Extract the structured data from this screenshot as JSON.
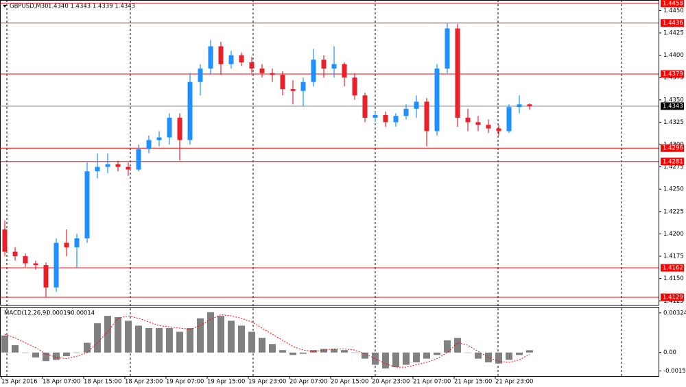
{
  "chart_data": [
    {
      "type": "candlestick",
      "title": "GBPUSD,M30",
      "subtitle": "1.4340 1.4343 1.4339 1.4343",
      "ylim": [
        1.41206,
        1.44618
      ],
      "yticks": [
        1.4125,
        {
          "value": 1.415,
          "label": "1.4150"
        },
        1.4175,
        {
          "value": 1.42,
          "label": "1.4200"
        },
        1.4225,
        {
          "value": 1.425,
          "label": "1.4250"
        },
        1.4275,
        {
          "value": 1.43,
          "label": "1.4300"
        },
        1.4325,
        {
          "value": 1.435,
          "label": "1.4350"
        },
        1.4375,
        {
          "value": 1.44,
          "label": "1.4400"
        },
        1.4425,
        {
          "value": 1.445,
          "label": "1.4450"
        }
      ],
      "up_color": "#1e90ff",
      "down_color": "#e8202a",
      "levels": [
        1.4458,
        1.4436,
        1.4379,
        1.4296,
        1.4281,
        1.4162,
        1.4129
      ],
      "level_color": "#ff0000",
      "current_price": 1.4343,
      "current_color": "#778899",
      "open": [
        1.4205,
        1.418,
        1.4175,
        1.4167,
        1.4165,
        1.414,
        1.419,
        1.4185,
        1.4195,
        1.427,
        1.4275,
        1.4278,
        1.4275,
        1.4272,
        1.4295,
        1.4305,
        1.4308,
        1.433,
        1.4305,
        1.437,
        1.4385,
        1.441,
        1.439,
        1.44,
        1.4392,
        1.4385,
        1.438,
        1.4378,
        1.4362,
        1.436,
        1.437,
        1.4395,
        1.4385,
        1.439,
        1.4375,
        1.4355,
        1.433,
        1.4333,
        1.4325,
        1.4332,
        1.434,
        1.4348,
        1.4315,
        1.4385,
        1.443,
        1.433,
        1.4325,
        1.4322,
        1.4318,
        1.4315,
        1.4342,
        1.4345
      ],
      "high": [
        1.4215,
        1.4185,
        1.4178,
        1.417,
        1.4168,
        1.4195,
        1.4205,
        1.42,
        1.428,
        1.429,
        1.429,
        1.4282,
        1.428,
        1.43,
        1.431,
        1.4315,
        1.4335,
        1.4335,
        1.438,
        1.439,
        1.4417,
        1.4415,
        1.4405,
        1.4403,
        1.4398,
        1.439,
        1.4385,
        1.4382,
        1.4372,
        1.4375,
        1.4407,
        1.44,
        1.441,
        1.4392,
        1.438,
        1.4358,
        1.4337,
        1.4337,
        1.4335,
        1.4345,
        1.4355,
        1.4352,
        1.439,
        1.4436,
        1.4435,
        1.434,
        1.4332,
        1.4328,
        1.4322,
        1.4345,
        1.4355,
        1.4346
      ],
      "low": [
        1.4175,
        1.417,
        1.4163,
        1.416,
        1.4129,
        1.4135,
        1.4175,
        1.4162,
        1.419,
        1.4262,
        1.4268,
        1.427,
        1.4265,
        1.427,
        1.429,
        1.4298,
        1.43,
        1.4282,
        1.43,
        1.4355,
        1.4378,
        1.4378,
        1.4385,
        1.4388,
        1.438,
        1.4375,
        1.437,
        1.4355,
        1.4345,
        1.4343,
        1.4365,
        1.4375,
        1.4375,
        1.4365,
        1.435,
        1.4325,
        1.4325,
        1.432,
        1.432,
        1.4328,
        1.433,
        1.4298,
        1.431,
        1.438,
        1.432,
        1.4315,
        1.4315,
        1.4313,
        1.431,
        1.4313,
        1.4335,
        1.4339
      ],
      "close": [
        1.418,
        1.4175,
        1.4167,
        1.4165,
        1.414,
        1.419,
        1.4185,
        1.4195,
        1.427,
        1.4275,
        1.4278,
        1.4275,
        1.4272,
        1.4295,
        1.4305,
        1.4308,
        1.433,
        1.4305,
        1.437,
        1.4385,
        1.441,
        1.439,
        1.44,
        1.4392,
        1.4385,
        1.438,
        1.4378,
        1.4362,
        1.436,
        1.437,
        1.4395,
        1.4385,
        1.439,
        1.4375,
        1.4355,
        1.433,
        1.4333,
        1.4325,
        1.4332,
        1.434,
        1.4348,
        1.4315,
        1.4385,
        1.443,
        1.433,
        1.4325,
        1.4322,
        1.4318,
        1.4315,
        1.4342,
        1.4345,
        1.4343
      ]
    },
    {
      "type": "macd",
      "title": "MACD(12,26,9)",
      "categories": [
        "15 Apr 2016",
        null,
        null,
        null,
        "18 Apr 07:00",
        null,
        null,
        null,
        "18 Apr 15:00",
        null,
        null,
        null,
        "18 Apr 23:00",
        null,
        null,
        null,
        "19 Apr 07:00",
        null,
        null,
        null,
        "19 Apr 15:00",
        null,
        null,
        null,
        "19 Apr 23:00",
        null,
        null,
        null,
        "20 Apr 07:00",
        null,
        null,
        null,
        "20 Apr 15:00",
        null,
        null,
        null,
        "20 Apr 23:00",
        null,
        null,
        null,
        "21 Apr 07:00",
        null,
        null,
        null,
        "21 Apr 15:00",
        null,
        null,
        null,
        "21 Apr 23:00",
        null,
        null,
        null
      ],
      "ylim": [
        -0.00192,
        0.00368
      ],
      "yticks": [
        0.00324,
        {
          "value": 0,
          "label": "0.00"
        },
        -0.00151
      ],
      "series": [
        {
          "name": "MACD",
          "color": "#808080",
          "values": [
            0.0014,
            0.0006,
            0,
            -0.0004,
            -0.0007,
            -0.0006,
            -0.0003,
            0,
            0.0008,
            0.0024,
            0.003,
            0.0029,
            0.0026,
            0.0022,
            0.002,
            0.002,
            0.002,
            0.0017,
            0.002,
            0.0028,
            0.0033,
            0.003,
            0.0026,
            0.0022,
            0.0017,
            0.0012,
            0.0007,
            0.0002,
            -0.0002,
            -0.0001,
            0.0002,
            0.0003,
            0.0003,
            0.0002,
            0,
            -0.0005,
            -0.001,
            -0.0013,
            -0.0012,
            -0.001,
            -0.0008,
            -0.0005,
            -0.0002,
            0.001,
            0.0012,
            0,
            -0.0005,
            -0.0008,
            -0.0009,
            -0.0006,
            -0.0002,
            0.00019
          ]
        },
        {
          "name": "Signal",
          "color": "#ff0000",
          "values": [
            0.0015,
            0.0012,
            0.0008,
            0.0004,
            -0.0001,
            -0.0004,
            -0.0005,
            -0.0003,
            0,
            0.0008,
            0.0017,
            0.0028,
            0.003,
            0.0028,
            0.0025,
            0.0022,
            0.0021,
            0.002,
            0.0019,
            0.0022,
            0.0027,
            0.0031,
            0.003,
            0.0028,
            0.0025,
            0.002,
            0.0015,
            0.001,
            0.0005,
            0.0002,
            0.0001,
            0.0002,
            0.0003,
            0.0003,
            0.0002,
            -0.0001,
            -0.0005,
            -0.0009,
            -0.0012,
            -0.0012,
            -0.001,
            -0.0008,
            -0.0005,
            0,
            0.0008,
            0.0006,
            0.0001,
            -0.0004,
            -0.0007,
            -0.0008,
            -0.0006,
            -0.00014
          ]
        }
      ]
    }
  ]
}
